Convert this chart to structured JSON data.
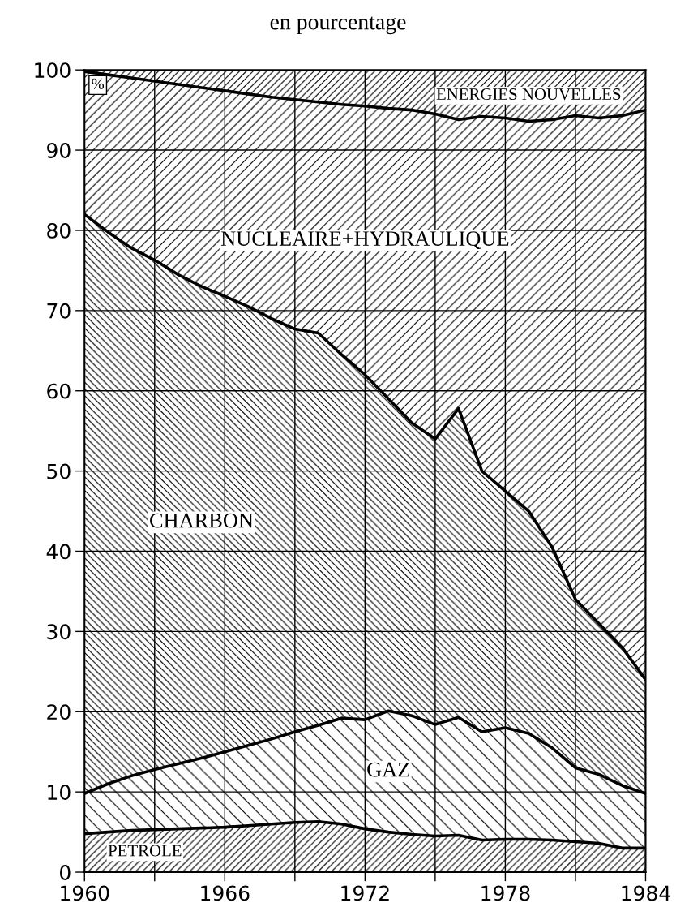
{
  "chart_data": {
    "type": "area",
    "stacked": true,
    "title": "en pourcentage",
    "ylabel": "%",
    "x": [
      1960,
      1961,
      1962,
      1963,
      1964,
      1965,
      1966,
      1967,
      1968,
      1969,
      1970,
      1971,
      1972,
      1973,
      1974,
      1975,
      1976,
      1977,
      1978,
      1979,
      1980,
      1981,
      1982,
      1983,
      1984
    ],
    "series": [
      {
        "name": "PETROLE",
        "color": "#000000",
        "values": [
          4.8,
          5.0,
          5.2,
          5.3,
          5.4,
          5.5,
          5.6,
          5.8,
          6.0,
          6.2,
          6.3,
          6.0,
          5.4,
          5.0,
          4.7,
          4.5,
          4.6,
          4.0,
          4.1,
          4.1,
          4.0,
          3.8,
          3.6,
          3.0,
          3.0
        ]
      },
      {
        "name": "GAZ",
        "color": "#000000",
        "values": [
          5.0,
          6.0,
          6.8,
          7.5,
          8.1,
          8.7,
          9.4,
          10.0,
          10.6,
          11.3,
          12.0,
          13.2,
          13.6,
          15.1,
          14.8,
          13.9,
          14.7,
          13.5,
          13.9,
          13.2,
          11.5,
          9.2,
          8.6,
          7.8,
          6.8
        ]
      },
      {
        "name": "CHARBON",
        "color": "#000000",
        "values": [
          72.2,
          68.8,
          65.8,
          63.5,
          61.0,
          58.8,
          56.8,
          54.7,
          52.4,
          50.2,
          48.9,
          45.3,
          43.0,
          38.9,
          36.5,
          35.6,
          38.5,
          32.5,
          29.5,
          27.7,
          25.0,
          21.0,
          18.8,
          17.2,
          14.2
        ]
      },
      {
        "name": "NUCLEAIRE+HYDRAULIQUE",
        "color": "#000000",
        "values": [
          17.8,
          19.6,
          21.2,
          22.3,
          23.7,
          24.8,
          25.6,
          26.5,
          27.6,
          28.6,
          28.8,
          31.2,
          33.5,
          36.2,
          39.0,
          40.5,
          36.0,
          44.2,
          46.5,
          48.6,
          53.3,
          60.3,
          63.0,
          66.3,
          71.0
        ]
      },
      {
        "name": "ENERGIES NOUVELLES",
        "color": "#000000",
        "values": [
          0.2,
          0.6,
          1.0,
          1.4,
          1.8,
          2.2,
          2.6,
          3.0,
          3.4,
          3.7,
          4.0,
          4.3,
          4.5,
          4.8,
          5.0,
          5.5,
          6.2,
          5.8,
          6.0,
          6.4,
          6.2,
          5.7,
          6.0,
          5.7,
          5.0
        ]
      }
    ],
    "xlim": [
      1960,
      1984
    ],
    "ylim": [
      0,
      100
    ],
    "xticks": [
      1960,
      {
        "value": 1963,
        "label": null
      },
      1966,
      {
        "value": 1969,
        "label": null
      },
      1972,
      {
        "value": 1975,
        "label": null
      },
      1978,
      {
        "value": 1981,
        "label": null
      },
      1984
    ],
    "yticks": [
      0,
      10,
      20,
      30,
      40,
      50,
      60,
      70,
      80,
      90,
      100
    ],
    "grid": true,
    "line_style": "solid"
  }
}
